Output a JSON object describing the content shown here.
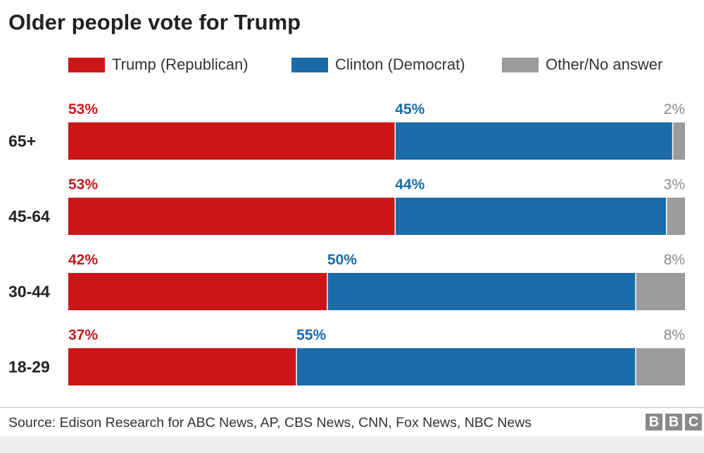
{
  "chart_data": {
    "type": "bar",
    "orientation": "horizontal",
    "stacked": true,
    "title": "Older people vote for Trump",
    "categories": [
      "65+",
      "45-64",
      "30-44",
      "18-29"
    ],
    "series": [
      {
        "name": "Trump (Republican)",
        "color": "#cc1518",
        "values": [
          53,
          53,
          42,
          37
        ],
        "labels": [
          "53%",
          "53%",
          "42%",
          "37%"
        ]
      },
      {
        "name": "Clinton (Democrat)",
        "color": "#1b6ba8",
        "values": [
          45,
          44,
          50,
          55
        ],
        "labels": [
          "45%",
          "44%",
          "50%",
          "55%"
        ]
      },
      {
        "name": "Other/No answer",
        "color": "#9b9b9b",
        "values": [
          2,
          3,
          8,
          8
        ],
        "labels": [
          "2%",
          "3%",
          "8%",
          "8%"
        ]
      }
    ],
    "xlim": [
      0,
      100
    ],
    "grid": false,
    "legend_position": "top"
  },
  "source": "Source: Edison Research for ABC News, AP, CBS News, CNN, Fox News, NBC News",
  "logo": {
    "letters": [
      "B",
      "B",
      "C"
    ]
  }
}
